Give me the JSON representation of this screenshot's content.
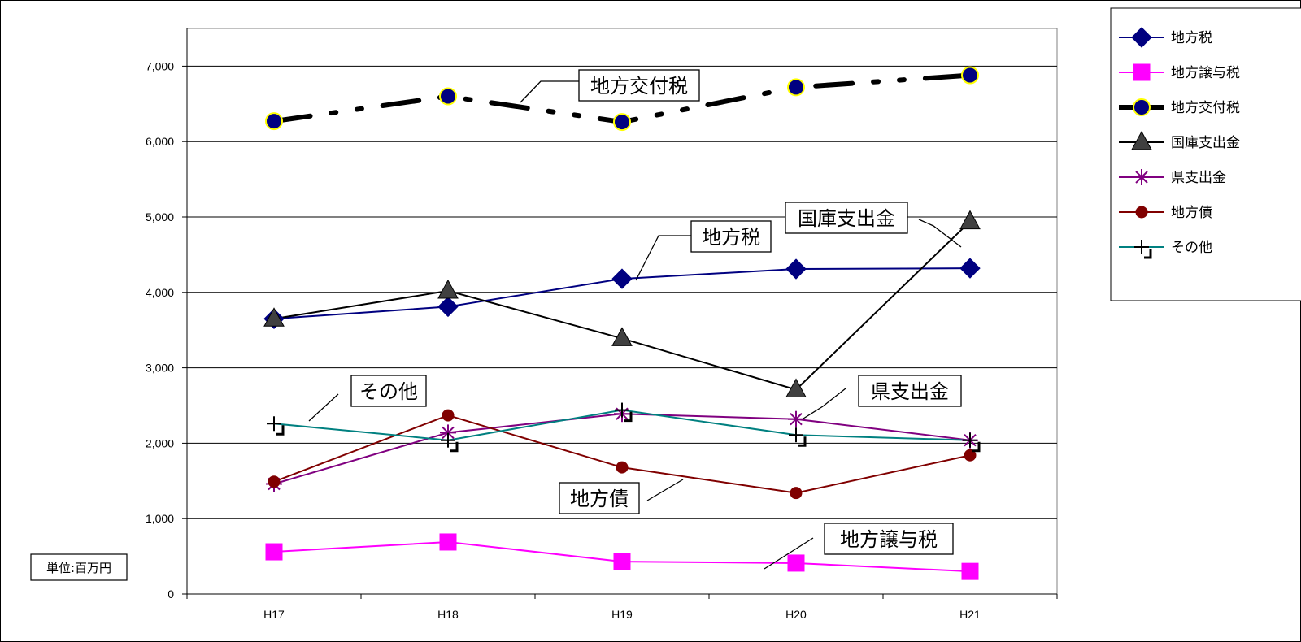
{
  "chart_data": {
    "type": "line",
    "title": "",
    "xlabel": "",
    "ylabel": "",
    "unit_label": "単位:百万円",
    "categories": [
      "H17",
      "H18",
      "H19",
      "H20",
      "H21"
    ],
    "ylim": [
      0,
      7500
    ],
    "yticks": [
      0,
      1000,
      2000,
      3000,
      4000,
      5000,
      6000,
      7000
    ],
    "ytick_labels": [
      "0",
      "1,000",
      "2,000",
      "3,000",
      "4,000",
      "5,000",
      "6,000",
      "7,000"
    ],
    "grid": true,
    "legend_position": "right",
    "series": [
      {
        "name": "地方税",
        "values": [
          3650,
          3810,
          4180,
          4310,
          4320
        ],
        "color": "#000080",
        "marker": "diamond"
      },
      {
        "name": "地方譲与税",
        "values": [
          560,
          690,
          430,
          410,
          300
        ],
        "color": "#ff00ff",
        "marker": "square"
      },
      {
        "name": "地方交付税",
        "values": [
          6270,
          6600,
          6260,
          6720,
          6880
        ],
        "color": "#000000",
        "marker": "circle-yellow",
        "dashed": true
      },
      {
        "name": "国庫支出金",
        "values": [
          3650,
          4020,
          3390,
          2710,
          4940
        ],
        "color": "#000000",
        "marker": "triangle"
      },
      {
        "name": "県支出金",
        "values": [
          1460,
          2140,
          2390,
          2320,
          2040
        ],
        "color": "#800080",
        "marker": "asterisk"
      },
      {
        "name": "地方債",
        "values": [
          1490,
          2370,
          1680,
          1340,
          1840
        ],
        "color": "#800000",
        "marker": "circle"
      },
      {
        "name": "その他",
        "values": [
          2260,
          2040,
          2440,
          2110,
          2040
        ],
        "color": "#008080",
        "marker": "plus"
      }
    ],
    "annotations": [
      {
        "text": "地方交付税",
        "series": 2
      },
      {
        "text": "国庫支出金",
        "series": 3
      },
      {
        "text": "地方税",
        "series": 0
      },
      {
        "text": "その他",
        "series": 6
      },
      {
        "text": "県支出金",
        "series": 4
      },
      {
        "text": "地方債",
        "series": 5
      },
      {
        "text": "地方譲与税",
        "series": 1
      }
    ]
  }
}
